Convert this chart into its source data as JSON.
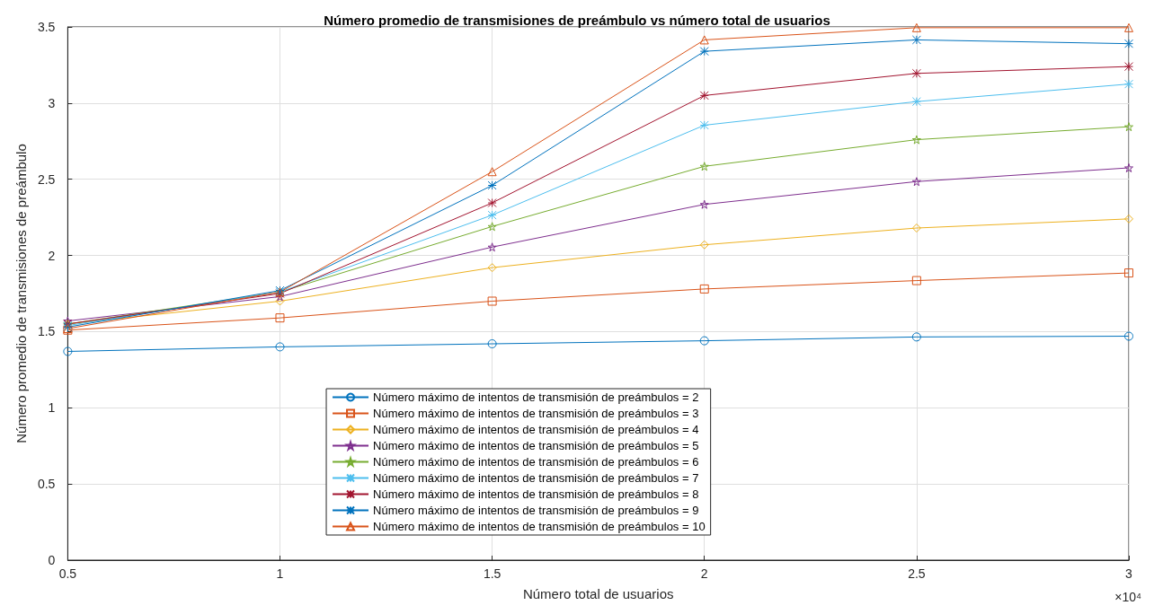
{
  "chart_data": {
    "type": "line",
    "title": "Número promedio de transmisiones de preámbulo vs número total de usuarios",
    "xlabel": "Número total de usuarios",
    "ylabel": "Número promedio de transmisiones de preámbulo",
    "x": [
      0.5,
      1,
      1.5,
      2,
      2.5,
      3
    ],
    "xlim": [
      0.5,
      3
    ],
    "xticks": [
      0.5,
      1,
      1.5,
      2,
      2.5,
      3
    ],
    "ylim": [
      0,
      3.5
    ],
    "yticks": [
      0,
      0.5,
      1,
      1.5,
      2,
      2.5,
      3,
      3.5
    ],
    "annotations": [
      "×10⁴"
    ],
    "grid": true,
    "legend": "bottom left",
    "line_style": "solid",
    "series": [
      {
        "name": "Número máximo de intentos de transmisión de preámbulos = 2",
        "color": "#0072bd",
        "marker": "circle",
        "values": [
          1.37,
          1.4,
          1.42,
          1.44,
          1.465,
          1.47
        ]
      },
      {
        "name": "Número máximo de intentos de transmisión de preámbulos = 3",
        "color": "#d95319",
        "marker": "square",
        "values": [
          1.51,
          1.59,
          1.7,
          1.78,
          1.835,
          1.885
        ]
      },
      {
        "name": "Número máximo de intentos de transmisión de preámbulos = 4",
        "color": "#edb120",
        "marker": "diamond",
        "values": [
          1.55,
          1.7,
          1.92,
          2.07,
          2.18,
          2.24
        ]
      },
      {
        "name": "Número máximo de intentos de transmisión de preámbulos = 5",
        "color": "#7e2f8e",
        "marker": "star",
        "values": [
          1.57,
          1.73,
          2.055,
          2.335,
          2.485,
          2.575
        ]
      },
      {
        "name": "Número máximo de intentos de transmisión de preámbulos = 6",
        "color": "#77ac30",
        "marker": "star",
        "values": [
          1.55,
          1.76,
          2.19,
          2.585,
          2.76,
          2.845
        ]
      },
      {
        "name": "Número máximo de intentos de transmisión de preámbulos = 7",
        "color": "#4dbeee",
        "marker": "cross",
        "values": [
          1.54,
          1.76,
          2.265,
          2.855,
          3.01,
          3.125
        ]
      },
      {
        "name": "Número máximo de intentos de transmisión de preámbulos = 8",
        "color": "#a2142f",
        "marker": "cross",
        "values": [
          1.55,
          1.75,
          2.345,
          3.05,
          3.195,
          3.24
        ]
      },
      {
        "name": "Número máximo de intentos de transmisión de preámbulos = 9",
        "color": "#0072bd",
        "marker": "cross",
        "values": [
          1.53,
          1.77,
          2.46,
          3.34,
          3.415,
          3.39
        ]
      },
      {
        "name": "Número máximo de intentos de transmisión de preámbulos = 10",
        "color": "#d95319",
        "marker": "triangle",
        "values": [
          1.52,
          1.76,
          2.55,
          3.415,
          3.495,
          3.495
        ]
      }
    ]
  }
}
